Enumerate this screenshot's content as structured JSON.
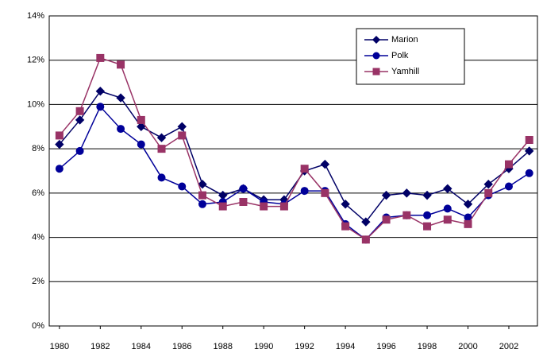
{
  "chart_data": {
    "type": "line",
    "x": [
      1980,
      1981,
      1982,
      1983,
      1984,
      1985,
      1986,
      1987,
      1988,
      1989,
      1990,
      1991,
      1992,
      1993,
      1994,
      1995,
      1996,
      1997,
      1998,
      1999,
      2000,
      2001,
      2002,
      2003
    ],
    "series": [
      {
        "name": "Marion",
        "color": "#000066",
        "marker": "diamond",
        "values": [
          8.2,
          9.3,
          10.6,
          10.3,
          9.0,
          8.5,
          9.0,
          6.4,
          5.9,
          6.2,
          5.7,
          5.7,
          7.0,
          7.3,
          5.5,
          4.7,
          5.9,
          6.0,
          5.9,
          6.2,
          5.5,
          6.4,
          7.1,
          7.9
        ]
      },
      {
        "name": "Polk",
        "color": "#000099",
        "marker": "circle",
        "values": [
          7.1,
          7.9,
          9.9,
          8.9,
          8.2,
          6.7,
          6.3,
          5.5,
          5.6,
          6.2,
          5.6,
          5.5,
          6.1,
          6.1,
          4.6,
          3.9,
          4.9,
          5.0,
          5.0,
          5.3,
          4.9,
          5.9,
          6.3,
          6.9
        ]
      },
      {
        "name": "Yamhill",
        "color": "#993366",
        "marker": "square",
        "values": [
          8.6,
          9.7,
          12.1,
          11.8,
          9.3,
          8.0,
          8.6,
          5.9,
          5.4,
          5.6,
          5.4,
          5.4,
          7.1,
          6.0,
          4.5,
          3.9,
          4.8,
          5.0,
          4.5,
          4.8,
          4.6,
          6.0,
          7.3,
          8.4
        ]
      }
    ],
    "xlim": [
      1979.5,
      2003.4
    ],
    "xticks": [
      1980,
      1982,
      1984,
      1986,
      1988,
      1990,
      1992,
      1994,
      1996,
      1998,
      2000,
      2002
    ],
    "ylim": [
      0,
      14
    ],
    "yticks": [
      {
        "value": 0,
        "label": "0%"
      },
      {
        "value": 2,
        "label": "2%"
      },
      {
        "value": 4,
        "label": "4%"
      },
      {
        "value": 6,
        "label": "6%"
      },
      {
        "value": 8,
        "label": "8%"
      },
      {
        "value": 10,
        "label": "10%"
      },
      {
        "value": 12,
        "label": "12%"
      },
      {
        "value": 14,
        "label": "14%"
      }
    ],
    "grid": true,
    "legend": "upper-right"
  }
}
